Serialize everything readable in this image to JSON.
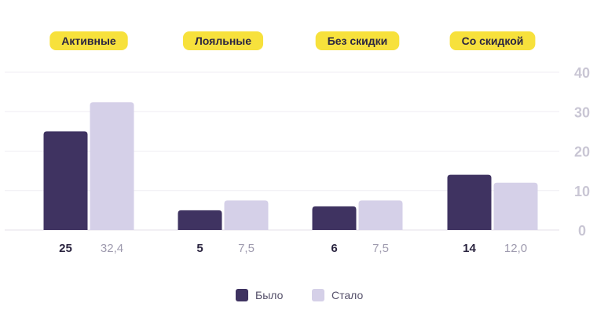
{
  "chart_data": {
    "type": "bar",
    "categories": [
      "Активные",
      "Лояльные",
      "Без скидки",
      "Со скидкой"
    ],
    "series": [
      {
        "name": "Было",
        "values": [
          25,
          5,
          6,
          14
        ],
        "labels": [
          "25",
          "5",
          "6",
          "14"
        ],
        "color": "#3F3361"
      },
      {
        "name": "Стало",
        "values": [
          32.4,
          7.5,
          7.5,
          12.0
        ],
        "labels": [
          "32,4",
          "7,5",
          "7,5",
          "12,0"
        ],
        "color": "#D5D0E8"
      }
    ],
    "ylim": [
      0,
      40
    ],
    "yticks": [
      "0",
      "10",
      "20",
      "30",
      "40"
    ],
    "grid": true,
    "y_axis_side": "right",
    "legend_position": "bottom-center",
    "category_label_color": "#F7E13C"
  }
}
